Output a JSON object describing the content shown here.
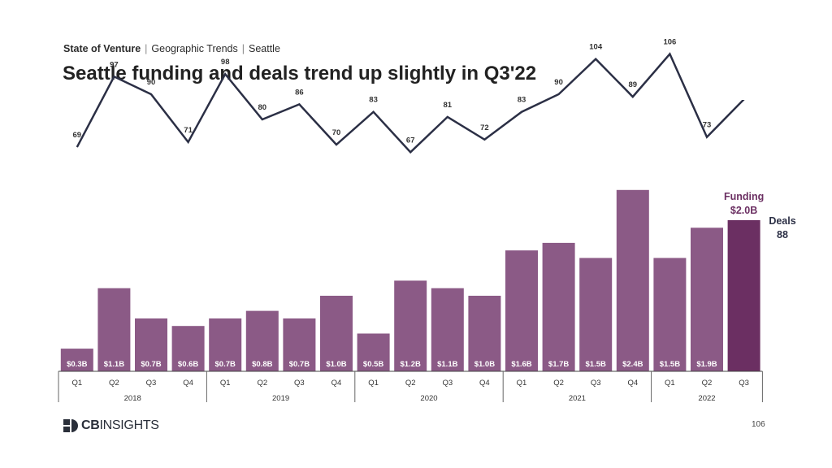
{
  "header": {
    "section": "State of Venture",
    "subsection": "Geographic Trends",
    "location": "Seattle",
    "separator": "|"
  },
  "title": "Seattle funding and deals trend up slightly in Q3'22",
  "chart_data": {
    "type": "bar",
    "categories": [
      "Q1",
      "Q2",
      "Q3",
      "Q4",
      "Q1",
      "Q2",
      "Q3",
      "Q4",
      "Q1",
      "Q2",
      "Q3",
      "Q4",
      "Q1",
      "Q2",
      "Q3",
      "Q4",
      "Q1",
      "Q2",
      "Q3"
    ],
    "years": [
      {
        "label": "2018",
        "count": 4
      },
      {
        "label": "2019",
        "count": 4
      },
      {
        "label": "2020",
        "count": 4
      },
      {
        "label": "2021",
        "count": 4
      },
      {
        "label": "2022",
        "count": 3
      }
    ],
    "series": [
      {
        "name": "Funding",
        "type": "bar",
        "values": [
          0.3,
          1.1,
          0.7,
          0.6,
          0.7,
          0.8,
          0.7,
          1.0,
          0.5,
          1.2,
          1.1,
          1.0,
          1.6,
          1.7,
          1.5,
          2.4,
          1.5,
          1.9,
          2.0
        ],
        "labels": [
          "$0.3B",
          "$1.1B",
          "$0.7B",
          "$0.6B",
          "$0.7B",
          "$0.8B",
          "$0.7B",
          "$1.0B",
          "$0.5B",
          "$1.2B",
          "$1.1B",
          "$1.0B",
          "$1.6B",
          "$1.7B",
          "$1.5B",
          "$2.4B",
          "$1.5B",
          "$1.9B",
          ""
        ],
        "color": "#8b5a86",
        "highlight_color": "#6b2f62"
      },
      {
        "name": "Deals",
        "type": "line",
        "values": [
          69,
          97,
          90,
          71,
          98,
          80,
          86,
          70,
          83,
          67,
          81,
          72,
          83,
          90,
          104,
          89,
          106,
          73,
          88
        ],
        "color": "#2b2f45"
      }
    ],
    "legend": {
      "funding_title": "Funding",
      "funding_value": "$2.0B",
      "deals_title": "Deals",
      "deals_value": "88"
    }
  },
  "footer": {
    "logo_bold": "CB",
    "logo_text": "INSIGHTS",
    "page_number": "106"
  }
}
